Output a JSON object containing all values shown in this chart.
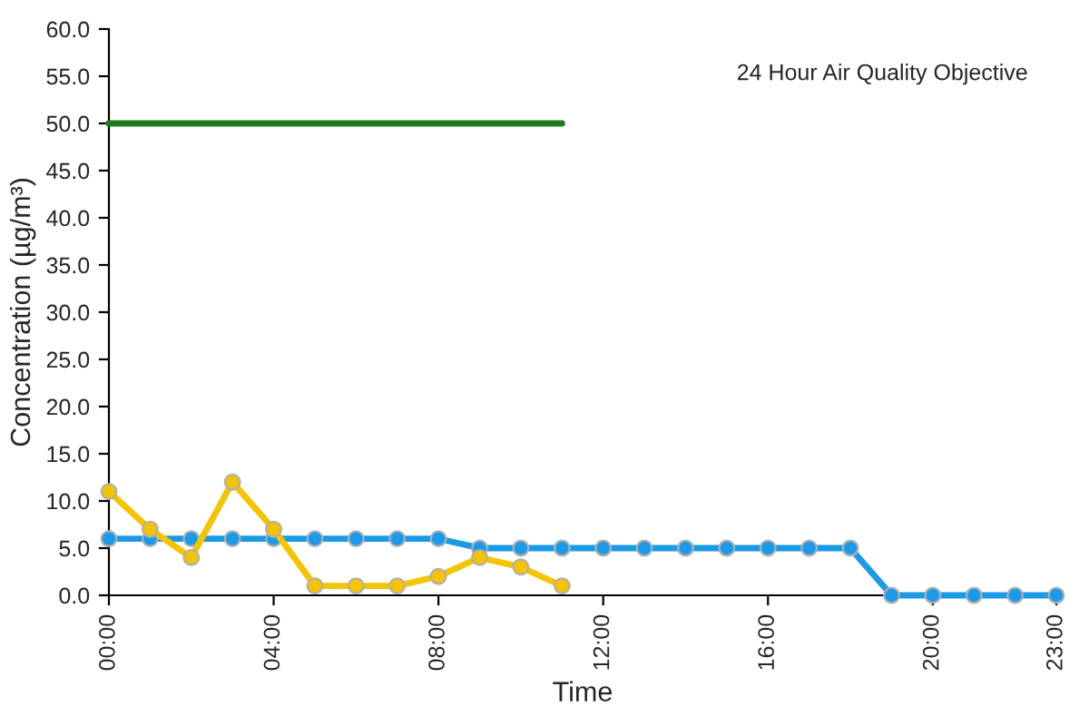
{
  "chart_data": {
    "type": "line",
    "xlabel": "Time",
    "ylabel": "Concentration (µg/m³)",
    "xlim": [
      0,
      23
    ],
    "ylim": [
      0,
      60
    ],
    "xticks": [
      {
        "value": 0,
        "label": "00:00"
      },
      {
        "value": 4,
        "label": "04:00"
      },
      {
        "value": 8,
        "label": "08:00"
      },
      {
        "value": 12,
        "label": "12:00"
      },
      {
        "value": 16,
        "label": "16:00"
      },
      {
        "value": 20,
        "label": "20:00"
      },
      {
        "value": 23,
        "label": "23:00"
      }
    ],
    "yticks": [
      {
        "value": 0,
        "label": "0.0"
      },
      {
        "value": 5,
        "label": "5.0"
      },
      {
        "value": 10,
        "label": "10.0"
      },
      {
        "value": 15,
        "label": "15.0"
      },
      {
        "value": 20,
        "label": "20.0"
      },
      {
        "value": 25,
        "label": "25.0"
      },
      {
        "value": 30,
        "label": "30.0"
      },
      {
        "value": 35,
        "label": "35.0"
      },
      {
        "value": 40,
        "label": "40.0"
      },
      {
        "value": 45,
        "label": "45.0"
      },
      {
        "value": 50,
        "label": "50.0"
      },
      {
        "value": 55,
        "label": "55.0"
      },
      {
        "value": 60,
        "label": "60.0"
      }
    ],
    "grid": false,
    "legend": false,
    "marker": "circle",
    "line_style": "solid",
    "series": [
      {
        "color": "#1a9ae8",
        "x": [
          0,
          1,
          2,
          3,
          4,
          5,
          6,
          7,
          8,
          9,
          10,
          11,
          12,
          13,
          14,
          15,
          16,
          17,
          18,
          19,
          20,
          21,
          22,
          23
        ],
        "values": [
          6,
          6,
          6,
          6,
          6,
          6,
          6,
          6,
          6,
          5,
          5,
          5,
          5,
          5,
          5,
          5,
          5,
          5,
          5,
          0,
          0,
          0,
          0,
          0
        ]
      },
      {
        "color": "#f5c400",
        "x": [
          0,
          1,
          2,
          3,
          4,
          5,
          6,
          7,
          8,
          9,
          10,
          11
        ],
        "values": [
          11,
          7,
          4,
          12,
          7,
          1,
          1,
          1,
          2,
          4,
          3,
          1
        ]
      },
      {
        "color": "#1e7a1e",
        "x": [
          0,
          11
        ],
        "values": [
          50,
          50
        ],
        "marker": "none"
      }
    ],
    "annotations": [
      "24 Hour Air Quality Objective"
    ]
  }
}
